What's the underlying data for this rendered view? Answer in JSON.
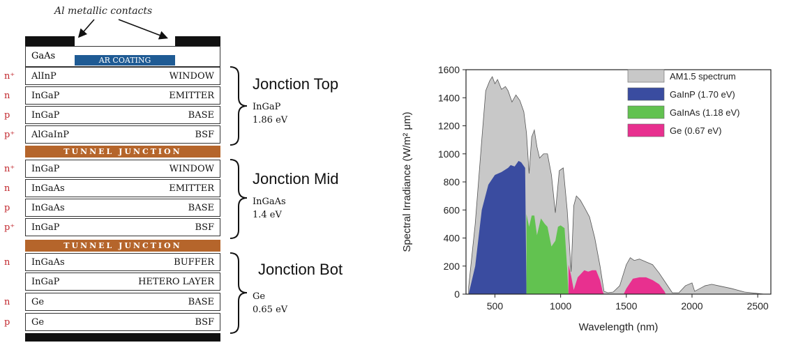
{
  "stack": {
    "callout": "Al metallic contacts",
    "cap_material": "GaAs",
    "ar_coating": "AR COATING",
    "layers": [
      {
        "dop": "n⁺",
        "mat": "AlInP",
        "role": "WINDOW"
      },
      {
        "dop": "n",
        "mat": "InGaP",
        "role": "EMITTER"
      },
      {
        "dop": "p",
        "mat": "InGaP",
        "role": "BASE"
      },
      {
        "dop": "p⁺",
        "mat": "AlGaInP",
        "role": "BSF"
      },
      {
        "dop": "n⁺",
        "mat": "InGaP",
        "role": "WINDOW"
      },
      {
        "dop": "n",
        "mat": "InGaAs",
        "role": "EMITTER"
      },
      {
        "dop": "p",
        "mat": "InGaAs",
        "role": "BASE"
      },
      {
        "dop": "p⁺",
        "mat": "InGaP",
        "role": "BSF"
      },
      {
        "dop": "n",
        "mat": "InGaAs",
        "role": "BUFFER"
      },
      {
        "dop": "",
        "mat": "InGaP",
        "role": "HETERO LAYER"
      },
      {
        "dop": "n",
        "mat": "Ge",
        "role": "BASE"
      },
      {
        "dop": "p",
        "mat": "Ge",
        "role": "BSF"
      }
    ],
    "tunnel_label": "TUNNEL JUNCTION",
    "junctions": [
      {
        "title": "Jonction Top",
        "material": "InGaP",
        "energy": "1.86 eV"
      },
      {
        "title": "Jonction Mid",
        "material": "InGaAs",
        "energy": "1.4 eV"
      },
      {
        "title": "Jonction Bot",
        "material": "Ge",
        "energy": "0.65 eV"
      }
    ]
  },
  "chart_data": {
    "type": "area",
    "xlabel": "Wavelength (nm)",
    "ylabel": "Spectral Irradiance (W/m² μm)",
    "xlim": [
      280,
      2600
    ],
    "ylim": [
      0,
      1600
    ],
    "xticks": [
      500,
      1000,
      1500,
      2000,
      2500
    ],
    "yticks": [
      0,
      200,
      400,
      600,
      800,
      1000,
      1200,
      1400,
      1600
    ],
    "legend_position": "top-right",
    "series": [
      {
        "name": "AM1.5 spectrum",
        "color": "#c8c8c8",
        "x": [
          300,
          350,
          400,
          430,
          460,
          480,
          500,
          520,
          550,
          580,
          600,
          630,
          660,
          690,
          720,
          740,
          760,
          780,
          800,
          820,
          840,
          870,
          900,
          930,
          960,
          990,
          1020,
          1050,
          1080,
          1100,
          1120,
          1150,
          1180,
          1220,
          1260,
          1300,
          1330,
          1360,
          1400,
          1450,
          1500,
          1530,
          1560,
          1600,
          1650,
          1700,
          1750,
          1800,
          1850,
          1900,
          1950,
          2000,
          2020,
          2060,
          2100,
          2150,
          2200,
          2300,
          2400,
          2500,
          2550
        ],
        "y": [
          50,
          500,
          1100,
          1450,
          1520,
          1550,
          1500,
          1530,
          1460,
          1480,
          1450,
          1370,
          1420,
          1380,
          1300,
          1150,
          860,
          1120,
          1170,
          1050,
          970,
          1000,
          1000,
          850,
          580,
          880,
          900,
          600,
          160,
          630,
          700,
          670,
          620,
          550,
          400,
          200,
          20,
          10,
          15,
          60,
          210,
          260,
          240,
          250,
          230,
          210,
          150,
          80,
          10,
          10,
          60,
          80,
          20,
          40,
          60,
          70,
          60,
          40,
          15,
          5,
          0
        ]
      },
      {
        "name": "GaInP (1.70 eV)",
        "color": "#3a4ca0",
        "x": [
          300,
          350,
          400,
          450,
          500,
          550,
          600,
          620,
          650,
          680,
          700,
          730,
          740
        ],
        "y": [
          0,
          200,
          600,
          780,
          850,
          870,
          900,
          920,
          910,
          950,
          940,
          900,
          0
        ]
      },
      {
        "name": "GaInAs (1.18 eV)",
        "color": "#62c250",
        "x": [
          740,
          760,
          780,
          800,
          820,
          850,
          880,
          900,
          930,
          960,
          980,
          1000,
          1030,
          1050,
          1060
        ],
        "y": [
          570,
          480,
          560,
          560,
          420,
          540,
          500,
          480,
          340,
          380,
          480,
          490,
          470,
          180,
          0
        ]
      },
      {
        "name": "Ge (0.67 eV)",
        "color": "#e8308f",
        "x": [
          1060,
          1080,
          1100,
          1130,
          1150,
          1180,
          1210,
          1240,
          1270,
          1300,
          1320,
          1330,
          1480,
          1500,
          1550,
          1600,
          1650,
          1700,
          1750,
          1790,
          1800
        ],
        "y": [
          210,
          130,
          30,
          120,
          140,
          170,
          160,
          170,
          170,
          100,
          20,
          0,
          0,
          40,
          110,
          120,
          120,
          100,
          70,
          20,
          0
        ]
      }
    ]
  }
}
